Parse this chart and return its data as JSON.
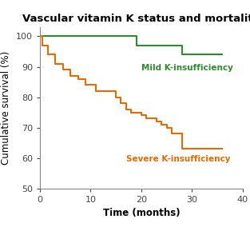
{
  "title": "Vascular vitamin K status and mortality",
  "xlabel": "Time (months)",
  "ylabel": "Cumulative survival (%)",
  "xlim": [
    0,
    40
  ],
  "ylim": [
    50,
    103
  ],
  "xticks": [
    0,
    10,
    20,
    30,
    40
  ],
  "yticks": [
    50,
    60,
    70,
    80,
    90,
    100
  ],
  "mild_color": "#2e8b2e",
  "severe_color": "#e86a00",
  "mild_label": "Mild K-insufficiency",
  "severe_label": "Severe K-insufficiency",
  "mild_x": [
    0,
    1,
    18,
    19,
    27,
    28,
    31,
    32,
    36
  ],
  "mild_y": [
    100,
    100,
    100,
    97,
    97,
    94,
    94,
    94,
    94
  ],
  "severe_x": [
    0,
    0.5,
    1.5,
    3,
    4.5,
    6,
    7.5,
    9,
    11,
    13,
    14,
    15,
    16,
    17,
    18,
    19,
    20,
    21,
    22,
    23,
    24,
    25,
    26,
    27,
    28,
    29,
    30,
    31,
    32,
    36
  ],
  "severe_y": [
    100,
    97,
    94,
    91,
    89,
    87,
    86,
    84,
    82,
    82,
    82,
    80,
    78,
    76,
    75,
    75,
    74,
    73,
    73,
    72,
    71,
    70,
    68,
    68,
    63,
    63,
    63,
    63,
    63,
    63
  ],
  "mild_ann_x": 20,
  "mild_ann_y": 91,
  "severe_ann_x": 17,
  "severe_ann_y": 61,
  "background_color": "#ffffff",
  "title_fontsize": 9.5,
  "label_fontsize": 8.5,
  "tick_fontsize": 8,
  "annotation_fontsize": 7.5,
  "line_width": 1.5
}
